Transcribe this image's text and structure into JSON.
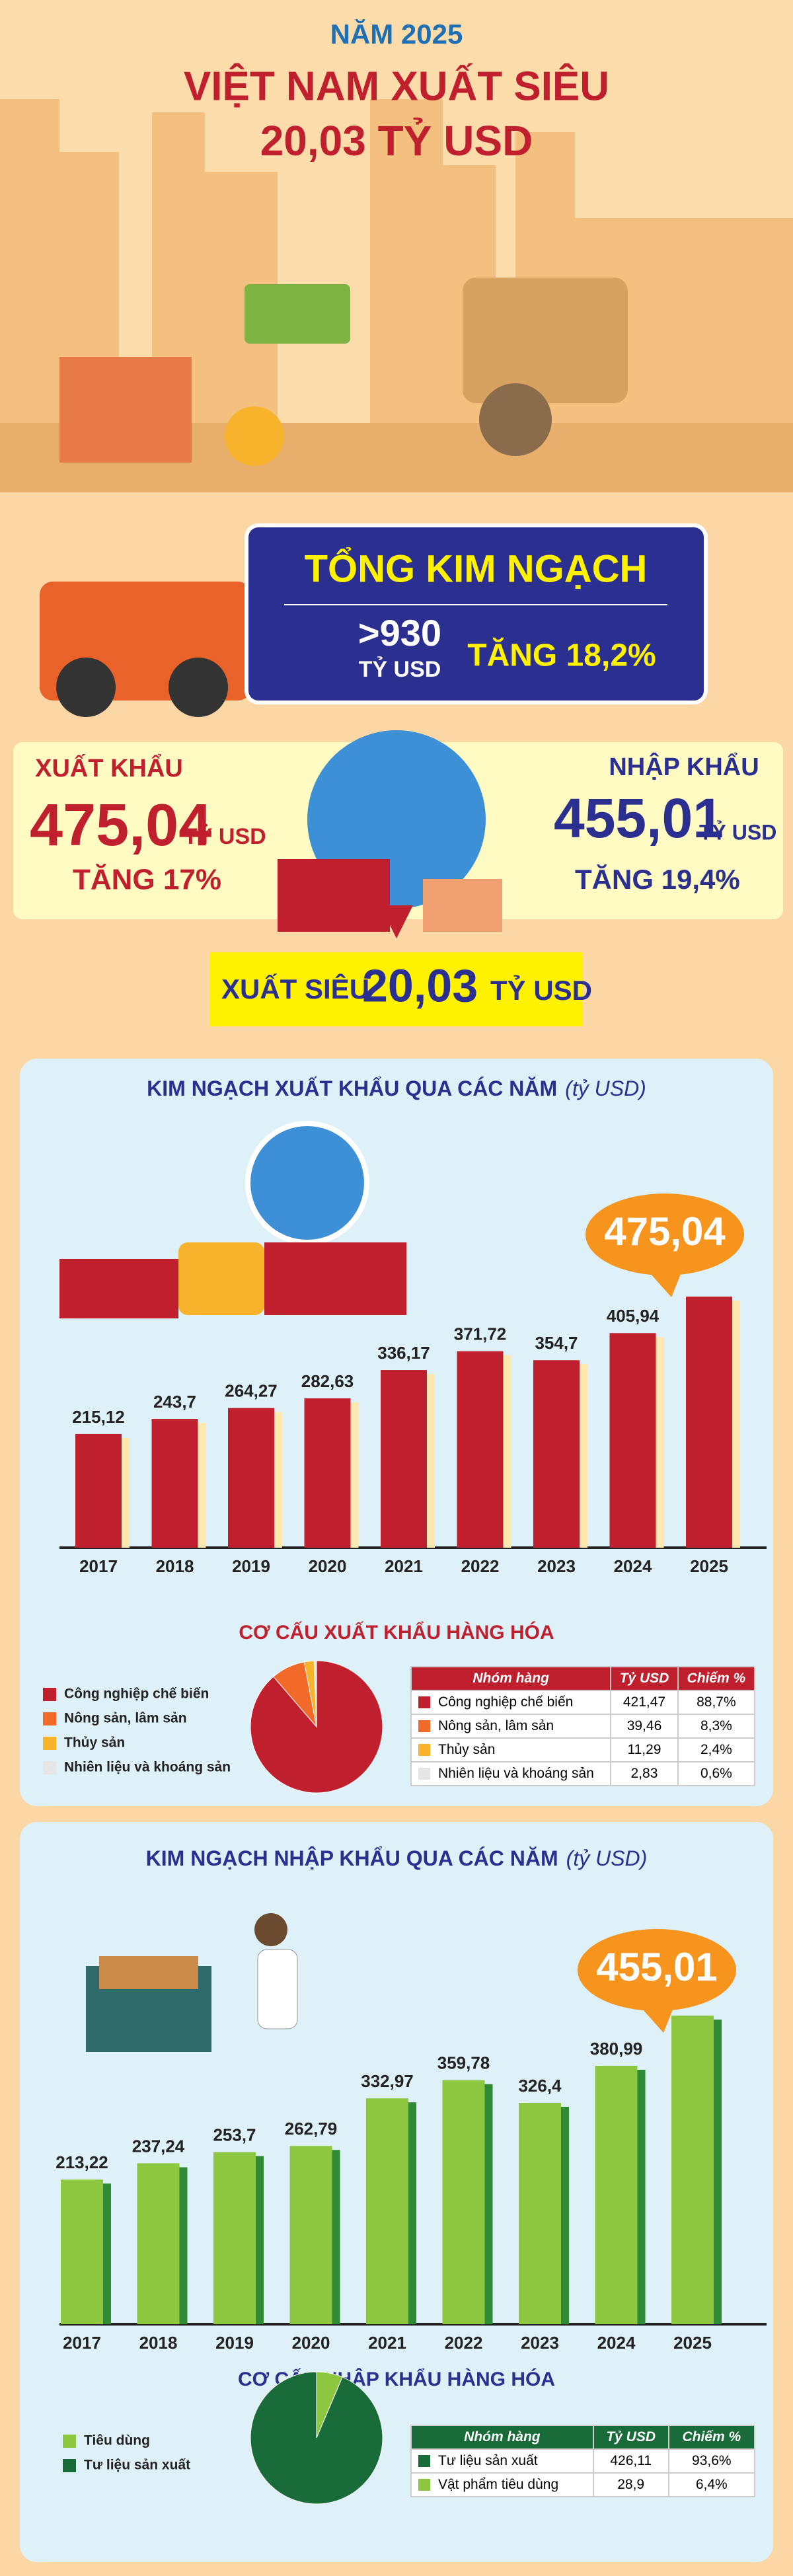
{
  "header": {
    "year": "NĂM 2025",
    "title_line1": "VIỆT NAM XUẤT SIÊU",
    "title_line2": "20,03 TỶ USD"
  },
  "total": {
    "label": "TỔNG KIM NGẠCH",
    "value": ">930",
    "unit": "TỶ USD",
    "growth": "TĂNG 18,2%"
  },
  "export": {
    "label": "XUẤT KHẨU",
    "value": "475,04",
    "unit": "TỶ USD",
    "growth": "TĂNG 17%"
  },
  "import": {
    "label": "NHẬP KHẨU",
    "value": "455,01",
    "unit": "TỶ USD",
    "growth": "TĂNG 19,4%"
  },
  "surplus": {
    "label": "XUẤT SIÊU",
    "value": "20,03",
    "unit": "TỶ USD"
  },
  "chart_data": [
    {
      "type": "bar",
      "title": "KIM NGẠCH XUẤT KHẨU QUA CÁC NĂM",
      "subtitle": "(tỷ USD)",
      "color": "#c0202e",
      "categories": [
        "2017",
        "2018",
        "2019",
        "2020",
        "2021",
        "2022",
        "2023",
        "2024",
        "2025"
      ],
      "values": [
        215.12,
        243.7,
        264.27,
        282.63,
        336.17,
        371.72,
        354.7,
        405.94,
        475.04
      ],
      "value_labels": [
        "215,12",
        "243,7",
        "264,27",
        "282,63",
        "336,17",
        "371,72",
        "354,7",
        "405,94",
        "475,04"
      ]
    },
    {
      "type": "pie",
      "title": "CƠ CẤU XUẤT KHẨU HÀNG HÓA",
      "categories": [
        "Công nghiệp chế biến",
        "Nông sản, lâm sản",
        "Thủy sản",
        "Nhiên liệu và khoáng sản"
      ],
      "values": [
        88.7,
        8.3,
        2.4,
        0.6
      ],
      "colors": [
        "#c0202e",
        "#f26a2a",
        "#f7b32b",
        "#e6e6e6"
      ]
    },
    {
      "type": "bar",
      "title": "KIM NGẠCH NHẬP KHẨU QUA CÁC NĂM",
      "subtitle": "(tỷ USD)",
      "color": "#8dc63f",
      "categories": [
        "2017",
        "2018",
        "2019",
        "2020",
        "2021",
        "2022",
        "2023",
        "2024",
        "2025"
      ],
      "values": [
        213.22,
        237.24,
        253.7,
        262.79,
        332.97,
        359.78,
        326.4,
        380.99,
        455.01
      ],
      "value_labels": [
        "213,22",
        "237,24",
        "253,7",
        "262,79",
        "332,97",
        "359,78",
        "326,4",
        "380,99",
        "455,01"
      ]
    },
    {
      "type": "pie",
      "title": "CƠ CẤU NHẬP KHẨU HÀNG HÓA",
      "categories": [
        "Tiêu dùng",
        "Tư liệu sản xuất"
      ],
      "values": [
        6.4,
        93.6
      ],
      "colors": [
        "#8dc63f",
        "#1a6b3a"
      ]
    }
  ],
  "tables": [
    {
      "columns": [
        "Nhóm hàng",
        "Tỷ USD",
        "Chiếm %"
      ],
      "rows": [
        [
          "Công nghiệp chế biến",
          "421,47",
          "88,7%"
        ],
        [
          "Nông sản, lâm sản",
          "39,46",
          "8,3%"
        ],
        [
          "Thủy sản",
          "11,29",
          "2,4%"
        ],
        [
          "Nhiên liệu và khoáng sản",
          "2,83",
          "0,6%"
        ]
      ]
    },
    {
      "columns": [
        "Nhóm hàng",
        "Tỷ USD",
        "Chiếm %"
      ],
      "rows": [
        [
          "Tư liệu sản xuất",
          "426,11",
          "93,6%"
        ],
        [
          "Vật phẩm tiêu dùng",
          "28,9",
          "6,4%"
        ]
      ]
    }
  ]
}
